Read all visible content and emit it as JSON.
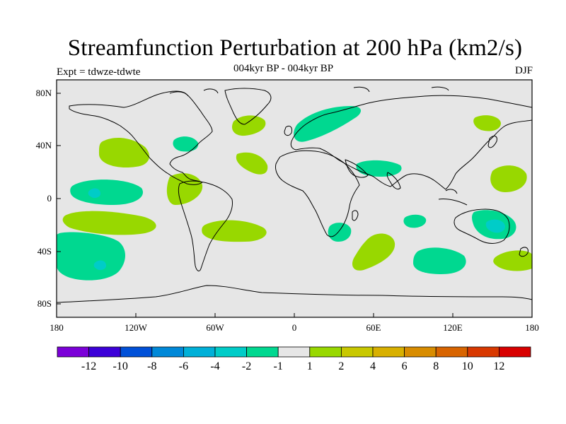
{
  "title": "Streamfunction Perturbation at 200 hPa (km2/s)",
  "subtitle": "004kyr BP - 004kyr BP",
  "experiment": "Expt = tdwze-tdwte",
  "season": "DJF",
  "colors": {
    "ocean": "#e6e6e6",
    "coast": "#000000",
    "neg_1": "#00d890",
    "neg_2": "#00ccc8",
    "pos_1": "#98d800"
  },
  "map": {
    "lat_labels": [
      "80N",
      "40N",
      "0",
      "40S",
      "80S"
    ],
    "lon_labels": [
      "180",
      "120W",
      "60W",
      "0",
      "60E",
      "120E",
      "180"
    ]
  },
  "colorbar": {
    "colors": [
      "#7b00d8",
      "#3c00d8",
      "#0050d8",
      "#0088d8",
      "#00b0d8",
      "#00ccc8",
      "#00d890",
      "#e6e6e6",
      "#98d800",
      "#c8c800",
      "#d8b000",
      "#d88c00",
      "#d86400",
      "#d83800",
      "#d80000"
    ],
    "labels": [
      "-12",
      "-10",
      "-8",
      "-6",
      "-4",
      "-2",
      "-1",
      "1",
      "2",
      "4",
      "6",
      "8",
      "10",
      "12"
    ]
  }
}
